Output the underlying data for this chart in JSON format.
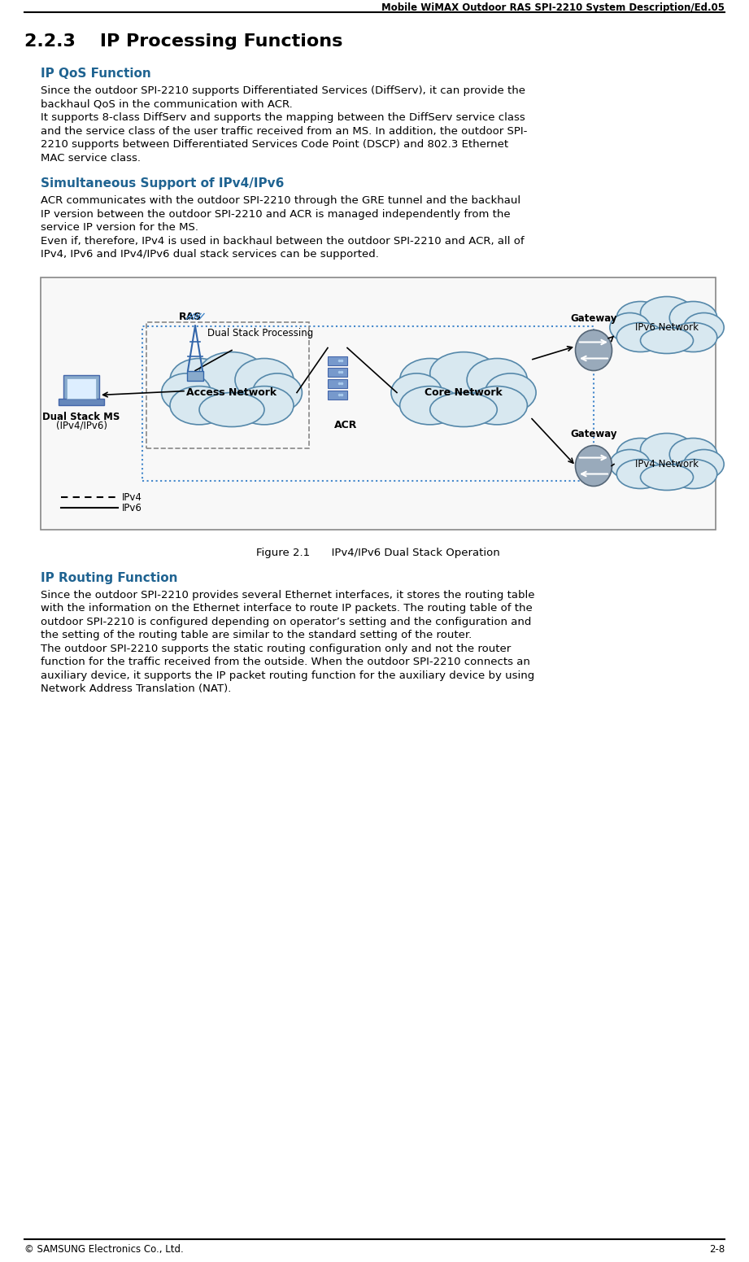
{
  "header_text": "Mobile WiMAX Outdoor RAS SPI-2210 System Description/Ed.05",
  "footer_left": "© SAMSUNG Electronics Co., Ltd.",
  "footer_right": "2-8",
  "section_title": "2.2.3  IP Processing Functions",
  "subsection1_title": "IP QoS Function",
  "subsection1_color": "#1F6391",
  "subsection1_body": [
    "Since the outdoor SPI-2210 supports Differentiated Services (DiffServ), it can provide the",
    "backhaul QoS in the communication with ACR.",
    "It supports 8-class DiffServ and supports the mapping between the DiffServ service class",
    "and the service class of the user traffic received from an MS. In addition, the outdoor SPI-",
    "2210 supports between Differentiated Services Code Point (DSCP) and 802.3 Ethernet",
    "MAC service class."
  ],
  "subsection2_title": "Simultaneous Support of IPv4/IPv6",
  "subsection2_color": "#1F6391",
  "subsection2_body": [
    "ACR communicates with the outdoor SPI-2210 through the GRE tunnel and the backhaul",
    "IP version between the outdoor SPI-2210 and ACR is managed independently from the",
    "service IP version for the MS.",
    "Even if, therefore, IPv4 is used in backhaul between the outdoor SPI-2210 and ACR, all of",
    "IPv4, IPv6 and IPv4/IPv6 dual stack services can be supported."
  ],
  "figure_caption": "Figure 2.1  IPv4/IPv6 Dual Stack Operation",
  "subsection3_title": "IP Routing Function",
  "subsection3_color": "#1F6391",
  "subsection3_body": [
    "Since the outdoor SPI-2210 provides several Ethernet interfaces, it stores the routing table",
    "with the information on the Ethernet interface to route IP packets. The routing table of the",
    "outdoor SPI-2210 is configured depending on operator’s setting and the configuration and",
    "the setting of the routing table are similar to the standard setting of the router.",
    "The outdoor SPI-2210 supports the static routing configuration only and not the router",
    "function for the traffic received from the outside. When the outdoor SPI-2210 connects an",
    "auxiliary device, it supports the IP packet routing function for the auxiliary device by using",
    "Network Address Translation (NAT)."
  ],
  "bg_color": "#ffffff",
  "header_line_color": "#000000",
  "footer_line_color": "#000000",
  "body_font_size": 9.5,
  "section_font_size": 16,
  "subsection_font_size": 11
}
